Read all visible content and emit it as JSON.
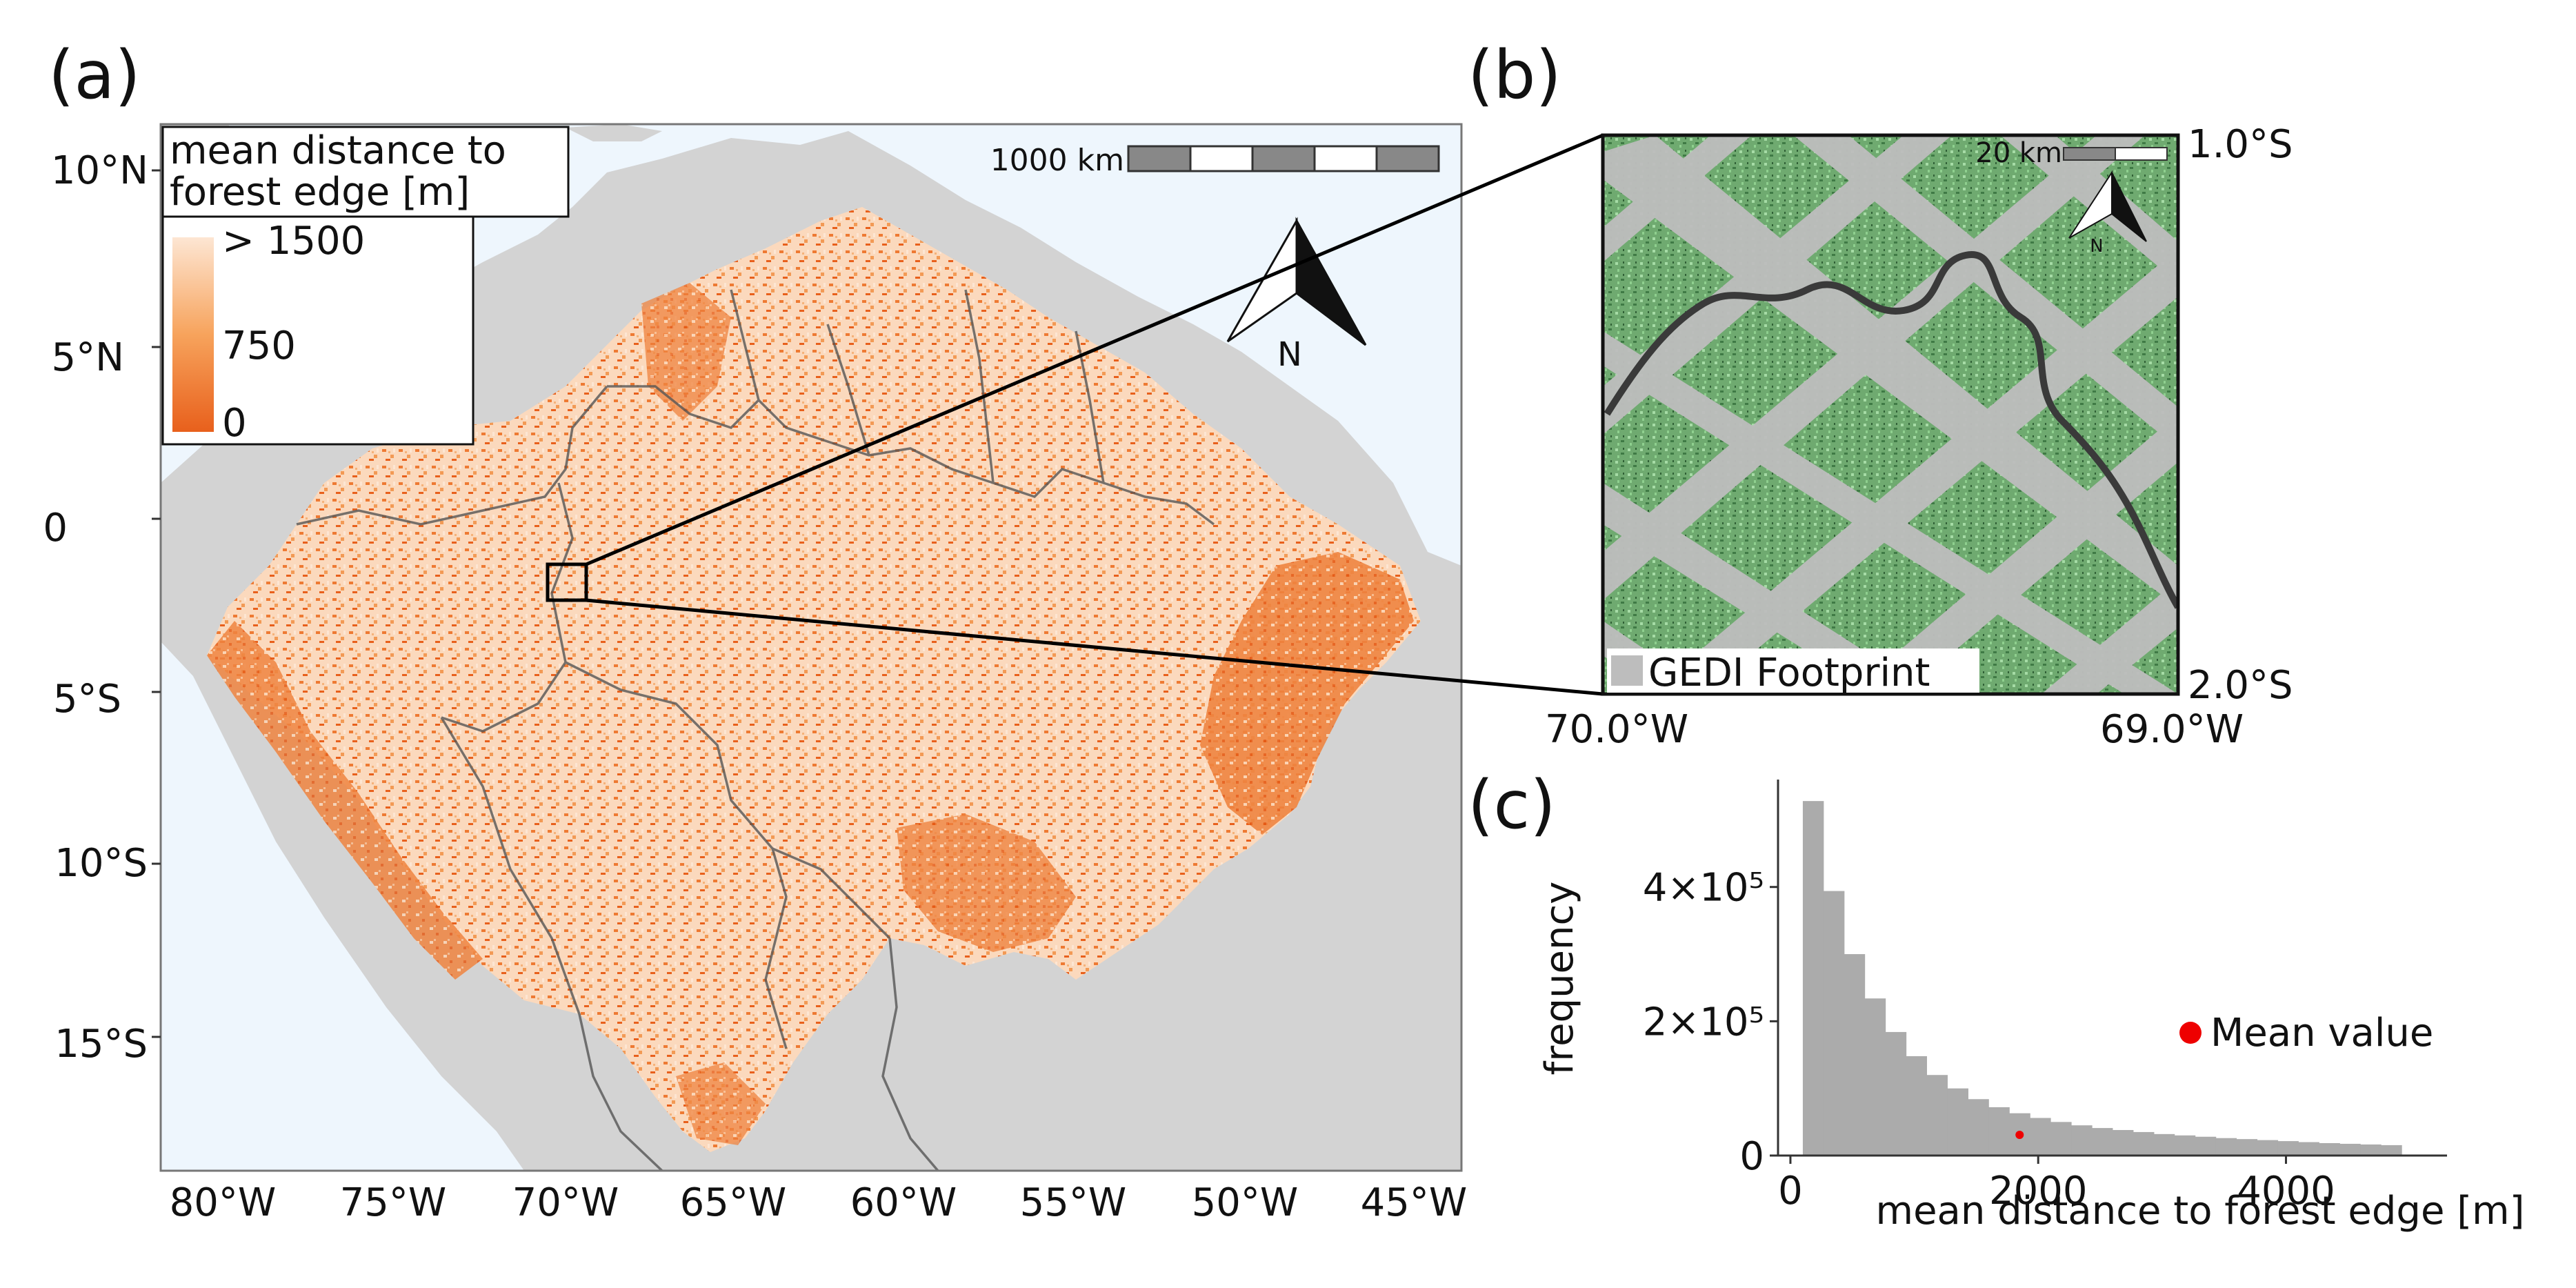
{
  "panel_a": {
    "label": "(a)",
    "legend": {
      "title_line1": "mean distance to",
      "title_line2": "forest edge [m]",
      "ticks": [
        "> 1500",
        "750",
        "0"
      ],
      "colors": [
        "#fde6d3",
        "#f7a35c",
        "#e8601c"
      ]
    },
    "scalebar_label": "1000 km",
    "north_label": "N",
    "lat_labels": [
      "10°N",
      "5°N",
      "0",
      "5°S",
      "10°S",
      "15°S"
    ],
    "lon_labels": [
      "80°W",
      "75°W",
      "70°W",
      "65°W",
      "60°W",
      "55°W",
      "50°W",
      "45°W"
    ],
    "colors": {
      "ocean": "#eef6fd",
      "land": "#d3d3d3",
      "border": "#555555"
    }
  },
  "panel_b": {
    "label": "(b)",
    "scalebar_label": "20 km",
    "north_label": "N",
    "legend_label": "GEDI Footprint",
    "lat_labels": [
      "1.0°S",
      "2.0°S"
    ],
    "lon_labels": [
      "70.0°W",
      "69.0°W"
    ],
    "colors": {
      "forest": "#7fbf7f",
      "footprint": "#bdbdbd",
      "river": "#3a3a3a"
    }
  },
  "panel_c": {
    "label": "(c)",
    "chart_data": {
      "type": "bar",
      "xlabel": "mean distance to forest edge [m]",
      "ylabel": "frequency",
      "x_ticks": [
        "0",
        "2000",
        "4000"
      ],
      "y_ticks": [
        "0",
        "2×10⁵",
        "4×10⁵"
      ],
      "xlim": [
        -100,
        5300
      ],
      "ylim": [
        0,
        560000
      ],
      "bin_width": 166.7,
      "bin_starts": [
        100,
        267,
        433,
        600,
        767,
        933,
        1100,
        1267,
        1433,
        1600,
        1767,
        1933,
        2100,
        2267,
        2433,
        2600,
        2767,
        2933,
        3100,
        3267,
        3433,
        3600,
        3767,
        3933,
        4100,
        4267,
        4433,
        4600,
        4767
      ],
      "values": [
        528000,
        394000,
        300000,
        234000,
        184000,
        148000,
        120000,
        100000,
        84000,
        72000,
        63000,
        56000,
        50000,
        45000,
        41000,
        38000,
        35000,
        32000,
        30000,
        28000,
        26000,
        24500,
        23000,
        21500,
        20000,
        18500,
        17500,
        16500,
        15500
      ],
      "bar_color": "#ababab",
      "mean_value": 1850,
      "mean_color": "#ee0000",
      "legend_label": "Mean value",
      "legend_placement": "right"
    }
  }
}
